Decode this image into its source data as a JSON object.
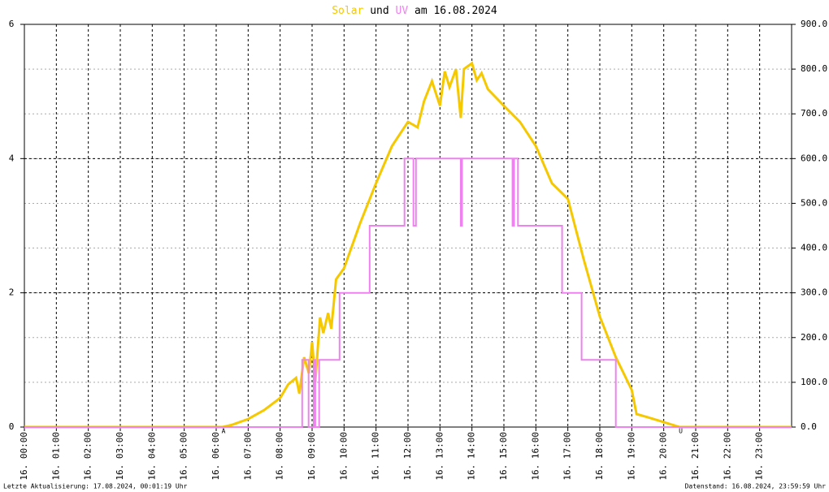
{
  "chart_data": {
    "type": "line",
    "title_connector": "und",
    "title_suffix": "am 16.08.2024",
    "footer_left": "Letzte Aktualisierung: 17.08.2024, 00:01:19 Uhr",
    "footer_right": "Datenstand: 16.08.2024, 23:59:59 Uhr",
    "xlim": [
      0,
      24
    ],
    "xticks": [
      {
        "value": 0,
        "label": "16. 00:00"
      },
      {
        "value": 1,
        "label": "16. 01:00"
      },
      {
        "value": 2,
        "label": "16. 02:00"
      },
      {
        "value": 3,
        "label": "16. 03:00"
      },
      {
        "value": 4,
        "label": "16. 04:00"
      },
      {
        "value": 5,
        "label": "16. 05:00"
      },
      {
        "value": 6,
        "label": "16. 06:00"
      },
      {
        "value": 7,
        "label": "16. 07:00"
      },
      {
        "value": 8,
        "label": "16. 08:00"
      },
      {
        "value": 9,
        "label": "16. 09:00"
      },
      {
        "value": 10,
        "label": "16. 10:00"
      },
      {
        "value": 11,
        "label": "16. 11:00"
      },
      {
        "value": 12,
        "label": "16. 12:00"
      },
      {
        "value": 13,
        "label": "16. 13:00"
      },
      {
        "value": 14,
        "label": "16. 14:00"
      },
      {
        "value": 15,
        "label": "16. 15:00"
      },
      {
        "value": 16,
        "label": "16. 16:00"
      },
      {
        "value": 17,
        "label": "16. 17:00"
      },
      {
        "value": 18,
        "label": "16. 18:00"
      },
      {
        "value": 19,
        "label": "16. 19:00"
      },
      {
        "value": 20,
        "label": "16. 20:00"
      },
      {
        "value": 21,
        "label": "16. 21:00"
      },
      {
        "value": 22,
        "label": "16. 22:00"
      },
      {
        "value": 23,
        "label": "16. 23:00"
      }
    ],
    "ylim": [
      0,
      6
    ],
    "yticks": [
      0,
      2,
      4,
      6
    ],
    "y2lim": [
      0,
      900
    ],
    "y2ticks": [
      {
        "value": 0,
        "label": "0.0"
      },
      {
        "value": 100,
        "label": "100.0"
      },
      {
        "value": 200,
        "label": "200.0"
      },
      {
        "value": 300,
        "label": "300.0"
      },
      {
        "value": 400,
        "label": "400.0"
      },
      {
        "value": 500,
        "label": "500.0"
      },
      {
        "value": 600,
        "label": "600.0"
      },
      {
        "value": 700,
        "label": "700.0"
      },
      {
        "value": 800,
        "label": "800.0"
      },
      {
        "value": 900,
        "label": "900.0"
      }
    ],
    "grid": true,
    "annotations": [
      {
        "text": "A",
        "x": 6.23,
        "color": "#cc0000"
      },
      {
        "text": "U",
        "x": 20.53,
        "color": "#cc0000"
      }
    ],
    "series": [
      {
        "name": "Solar",
        "color": "#f5c800",
        "axis": "y2",
        "x": [
          0,
          6.2,
          6.5,
          7,
          7.5,
          8,
          8.25,
          8.5,
          8.6,
          8.75,
          8.9,
          9,
          9.1,
          9.25,
          9.35,
          9.5,
          9.6,
          9.75,
          10,
          10.5,
          11,
          11.5,
          12,
          12.3,
          12.5,
          12.75,
          13,
          13.15,
          13.3,
          13.5,
          13.65,
          13.75,
          14,
          14.15,
          14.3,
          14.5,
          15,
          15.5,
          16,
          16.5,
          17,
          17.5,
          18,
          18.5,
          19,
          19.15,
          19.5,
          20,
          20.5,
          24
        ],
        "values": [
          0,
          0,
          5,
          18,
          38,
          65,
          95,
          110,
          75,
          156,
          120,
          190,
          100,
          245,
          210,
          255,
          220,
          330,
          355,
          455,
          545,
          628,
          682,
          670,
          728,
          773,
          718,
          795,
          760,
          800,
          691,
          800,
          813,
          775,
          791,
          755,
          718,
          682,
          628,
          545,
          510,
          374,
          247,
          156,
          83,
          29,
          22,
          11,
          0,
          0
        ]
      },
      {
        "name": "UV",
        "color": "#ee82ee",
        "x": [
          0,
          8.69,
          8.69,
          8.89,
          8.89,
          9.05,
          9.05,
          9.1,
          9.1,
          9.22,
          9.22,
          9.86,
          9.86,
          10.8,
          10.8,
          11.89,
          11.89,
          12.17,
          12.17,
          12.25,
          12.25,
          13.65,
          13.65,
          13.69,
          13.69,
          15.27,
          15.27,
          15.32,
          15.32,
          15.44,
          15.44,
          16.82,
          16.82,
          17.43,
          17.43,
          18.5,
          18.5,
          24
        ],
        "values": [
          0,
          0,
          1,
          1,
          0,
          0,
          1,
          1,
          0,
          0,
          1,
          1,
          2,
          2,
          3,
          3,
          4,
          4,
          3,
          3,
          4,
          4,
          3,
          3,
          4,
          4,
          3,
          3,
          4,
          4,
          3,
          3,
          2,
          2,
          1,
          1,
          0,
          0
        ]
      }
    ]
  }
}
